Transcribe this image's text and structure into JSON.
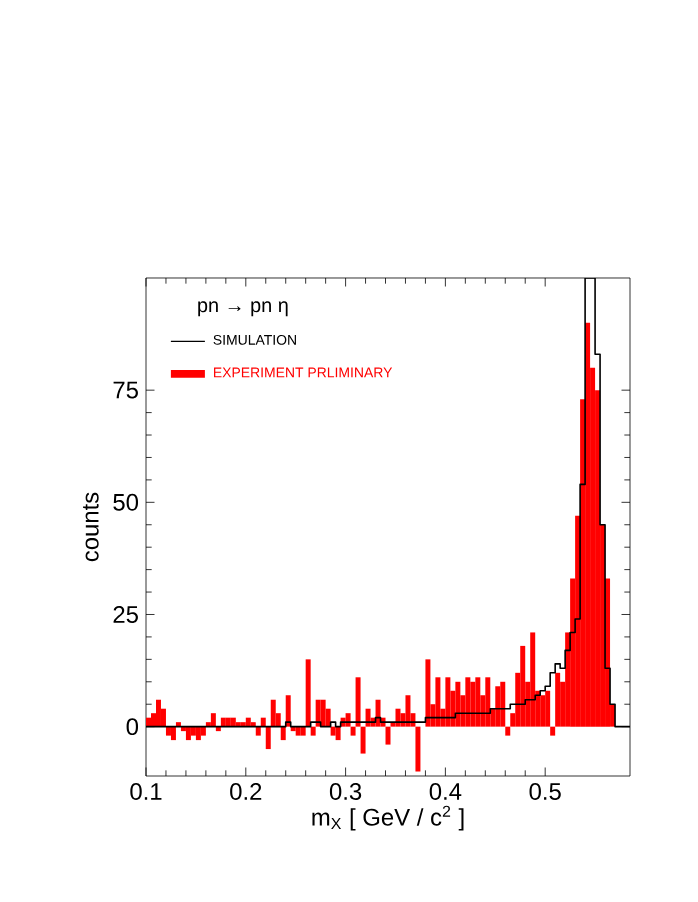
{
  "chart_data": {
    "type": "histogram",
    "legend_title": "pn → pn η",
    "xlabel": "m$_{X}$ [ GeV / c$^{2}$ ]",
    "ylabel": "counts",
    "bins": [
      0.1,
      0.105,
      0.11,
      0.115,
      0.12,
      0.125,
      0.13,
      0.135,
      0.14,
      0.145,
      0.15,
      0.155,
      0.16,
      0.165,
      0.17,
      0.175,
      0.18,
      0.185,
      0.19,
      0.195,
      0.2,
      0.205,
      0.21,
      0.215,
      0.22,
      0.225,
      0.23,
      0.235,
      0.24,
      0.245,
      0.25,
      0.255,
      0.26,
      0.265,
      0.27,
      0.275,
      0.28,
      0.285,
      0.29,
      0.295,
      0.3,
      0.305,
      0.31,
      0.315,
      0.32,
      0.325,
      0.33,
      0.335,
      0.34,
      0.345,
      0.35,
      0.355,
      0.36,
      0.365,
      0.37,
      0.375,
      0.38,
      0.385,
      0.39,
      0.395,
      0.4,
      0.405,
      0.41,
      0.415,
      0.42,
      0.425,
      0.43,
      0.435,
      0.44,
      0.445,
      0.45,
      0.455,
      0.46,
      0.465,
      0.47,
      0.475,
      0.48,
      0.485,
      0.49,
      0.495,
      0.5,
      0.505,
      0.51,
      0.515,
      0.52,
      0.525,
      0.53,
      0.535,
      0.54,
      0.545,
      0.55,
      0.555,
      0.56,
      0.565,
      0.57
    ],
    "series": [
      {
        "name": "SIMULATION",
        "type": "step",
        "color": "#000000",
        "x": [
          0.1,
          0.105,
          0.11,
          0.115,
          0.12,
          0.125,
          0.13,
          0.135,
          0.14,
          0.145,
          0.15,
          0.155,
          0.16,
          0.165,
          0.17,
          0.175,
          0.18,
          0.185,
          0.19,
          0.195,
          0.2,
          0.205,
          0.21,
          0.215,
          0.22,
          0.225,
          0.23,
          0.235,
          0.24,
          0.245,
          0.25,
          0.255,
          0.26,
          0.265,
          0.27,
          0.275,
          0.28,
          0.285,
          0.29,
          0.295,
          0.3,
          0.305,
          0.31,
          0.315,
          0.32,
          0.325,
          0.33,
          0.335,
          0.34,
          0.345,
          0.35,
          0.355,
          0.36,
          0.365,
          0.37,
          0.375,
          0.38,
          0.385,
          0.39,
          0.395,
          0.4,
          0.405,
          0.41,
          0.415,
          0.42,
          0.425,
          0.43,
          0.435,
          0.44,
          0.445,
          0.45,
          0.455,
          0.46,
          0.465,
          0.47,
          0.475,
          0.48,
          0.485,
          0.49,
          0.495,
          0.5,
          0.505,
          0.51,
          0.515,
          0.52,
          0.525,
          0.53,
          0.535,
          0.54,
          0.545,
          0.55,
          0.555,
          0.56,
          0.565,
          0.57,
          0.575,
          0.58,
          0.585
        ],
        "values": [
          0,
          0,
          0,
          0,
          0,
          0,
          0,
          0,
          0,
          0,
          0,
          0,
          0,
          0,
          0,
          0,
          0,
          0,
          0,
          0,
          0,
          0,
          0,
          0,
          0,
          0,
          0,
          0,
          1,
          0,
          0,
          0,
          0,
          1,
          1,
          0,
          0,
          1,
          0,
          1,
          1,
          1,
          1,
          1,
          1,
          1,
          2,
          1,
          1,
          1,
          1,
          1,
          1,
          1,
          1,
          1,
          2,
          2,
          2,
          2,
          2,
          2,
          3,
          3,
          3,
          3,
          3,
          3,
          3,
          4,
          4,
          4,
          4,
          5,
          5,
          5,
          6,
          6,
          7,
          8,
          9,
          12,
          14,
          13,
          17,
          21,
          24,
          54,
          100,
          100,
          83,
          45,
          13,
          5,
          0,
          0,
          0,
          0
        ]
      },
      {
        "name": "EXPERIMENT PRLIMINARY",
        "color": "#ff0000",
        "values": [
          2,
          3,
          6,
          4,
          -2,
          -3,
          1,
          -1,
          -3,
          -2,
          -3,
          -2,
          1,
          3,
          -1,
          2,
          2,
          2,
          1,
          1,
          2,
          1,
          -2,
          2,
          -5,
          6,
          3,
          -3,
          7,
          -1,
          -2,
          -2,
          15,
          -2,
          6,
          6,
          4,
          -2,
          -3,
          2,
          3,
          -2,
          11,
          -6,
          4,
          2,
          6,
          2,
          -4,
          1,
          4,
          3,
          7,
          3,
          -10,
          0,
          15,
          5,
          11,
          4,
          11,
          8,
          10,
          7,
          11,
          10,
          11,
          7,
          11,
          4,
          9,
          10,
          -2,
          3,
          12,
          18,
          10,
          21,
          8,
          7,
          8,
          -2,
          12,
          10,
          21,
          33,
          47,
          73,
          90,
          80,
          75,
          45,
          33,
          5
        ]
      }
    ],
    "xlim": [
      0.1,
      0.585
    ],
    "ylim": [
      -11,
      100
    ],
    "xticks": [
      0.1,
      0.2,
      0.3,
      0.4,
      0.5
    ],
    "yticks": [
      0,
      25,
      50,
      75
    ],
    "legend": "top left",
    "grid": false
  }
}
